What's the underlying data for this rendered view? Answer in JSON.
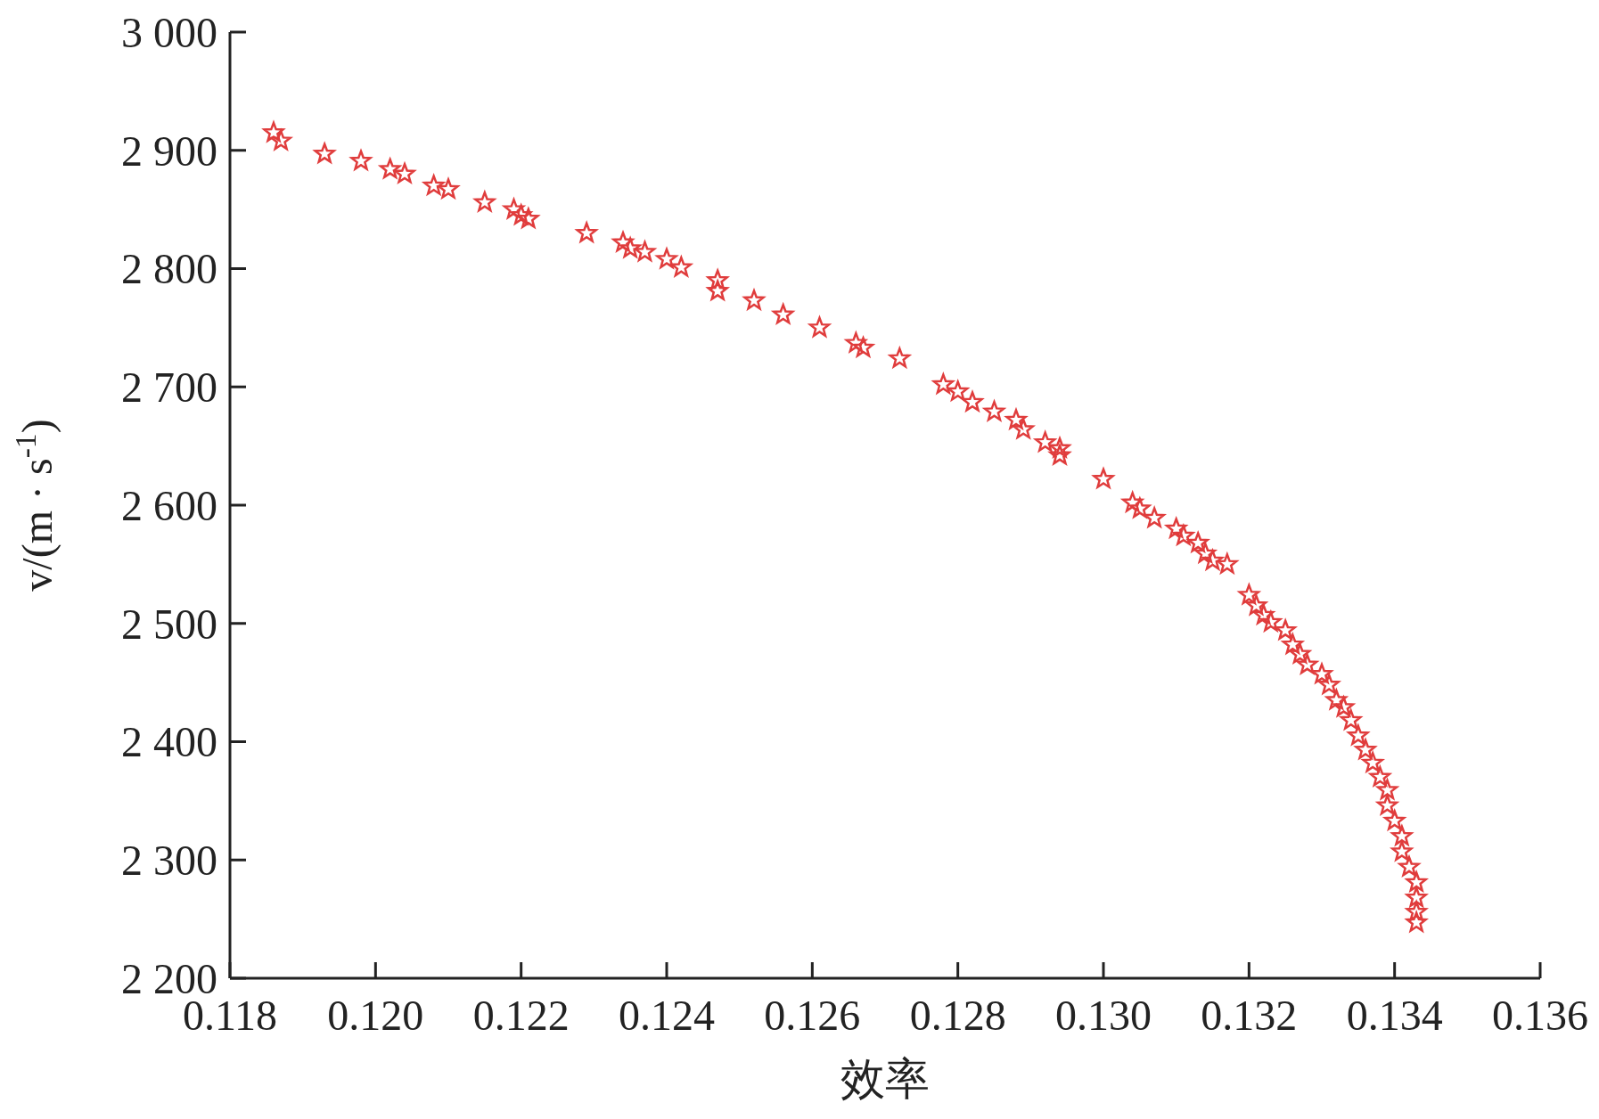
{
  "chart_data": {
    "type": "scatter",
    "xlabel": "效率",
    "ylabel": "v/(m · s$^{-1}$)",
    "marker": "star",
    "grid": false,
    "xlim": [
      0.118,
      0.136
    ],
    "xticks": [
      0.118,
      {
        "value": 0.12,
        "label": "0.120"
      },
      0.122,
      0.124,
      0.126,
      0.128,
      {
        "value": 0.13,
        "label": "0.130"
      },
      0.132,
      0.134,
      0.136
    ],
    "ylim": [
      2200,
      3000
    ],
    "yticks": [
      {
        "value": 2200,
        "label": "2 200"
      },
      {
        "value": 2300,
        "label": "2 300"
      },
      {
        "value": 2400,
        "label": "2 400"
      },
      {
        "value": 2500,
        "label": "2 500"
      },
      {
        "value": 2600,
        "label": "2 600"
      },
      {
        "value": 2700,
        "label": "2 700"
      },
      {
        "value": 2800,
        "label": "2 800"
      },
      {
        "value": 2900,
        "label": "2 900"
      },
      {
        "value": 3000,
        "label": "3 000"
      }
    ],
    "series": [
      {
        "color": "#e03c3c",
        "x": [
          0.1186,
          0.1187,
          0.1193,
          0.1198,
          0.1202,
          0.1204,
          0.1208,
          0.121,
          0.1215,
          0.1219,
          0.122,
          0.1221,
          0.1229,
          0.1234,
          0.1235,
          0.1237,
          0.124,
          0.1242,
          0.1247,
          0.1247,
          0.1252,
          0.1256,
          0.1261,
          0.1266,
          0.1267,
          0.1272,
          0.1278,
          0.128,
          0.1282,
          0.1285,
          0.1288,
          0.1289,
          0.1292,
          0.1294,
          0.1294,
          0.13,
          0.1304,
          0.1305,
          0.1307,
          0.131,
          0.1311,
          0.1313,
          0.1314,
          0.1315,
          0.1317,
          0.132,
          0.1321,
          0.1322,
          0.1323,
          0.1325,
          0.1326,
          0.1327,
          0.1328,
          0.133,
          0.1331,
          0.1332,
          0.1333,
          0.1334,
          0.1335,
          0.1336,
          0.1337,
          0.1338,
          0.1339,
          0.1339,
          0.134,
          0.1341,
          0.1341,
          0.1342,
          0.1343,
          0.1343,
          0.1343,
          0.1343
        ],
        "values": [
          2915,
          2908,
          2897,
          2891,
          2884,
          2880,
          2870,
          2867,
          2856,
          2850,
          2845,
          2842,
          2830,
          2822,
          2817,
          2814,
          2808,
          2801,
          2790,
          2781,
          2773,
          2761,
          2750,
          2737,
          2733,
          2724,
          2702,
          2696,
          2687,
          2679,
          2672,
          2664,
          2653,
          2648,
          2642,
          2622,
          2602,
          2597,
          2589,
          2580,
          2574,
          2568,
          2559,
          2553,
          2550,
          2524,
          2515,
          2507,
          2501,
          2494,
          2482,
          2474,
          2465,
          2457,
          2448,
          2435,
          2429,
          2418,
          2405,
          2393,
          2382,
          2370,
          2359,
          2346,
          2333,
          2320,
          2307,
          2294,
          2281,
          2268,
          2256,
          2247
        ]
      }
    ]
  }
}
